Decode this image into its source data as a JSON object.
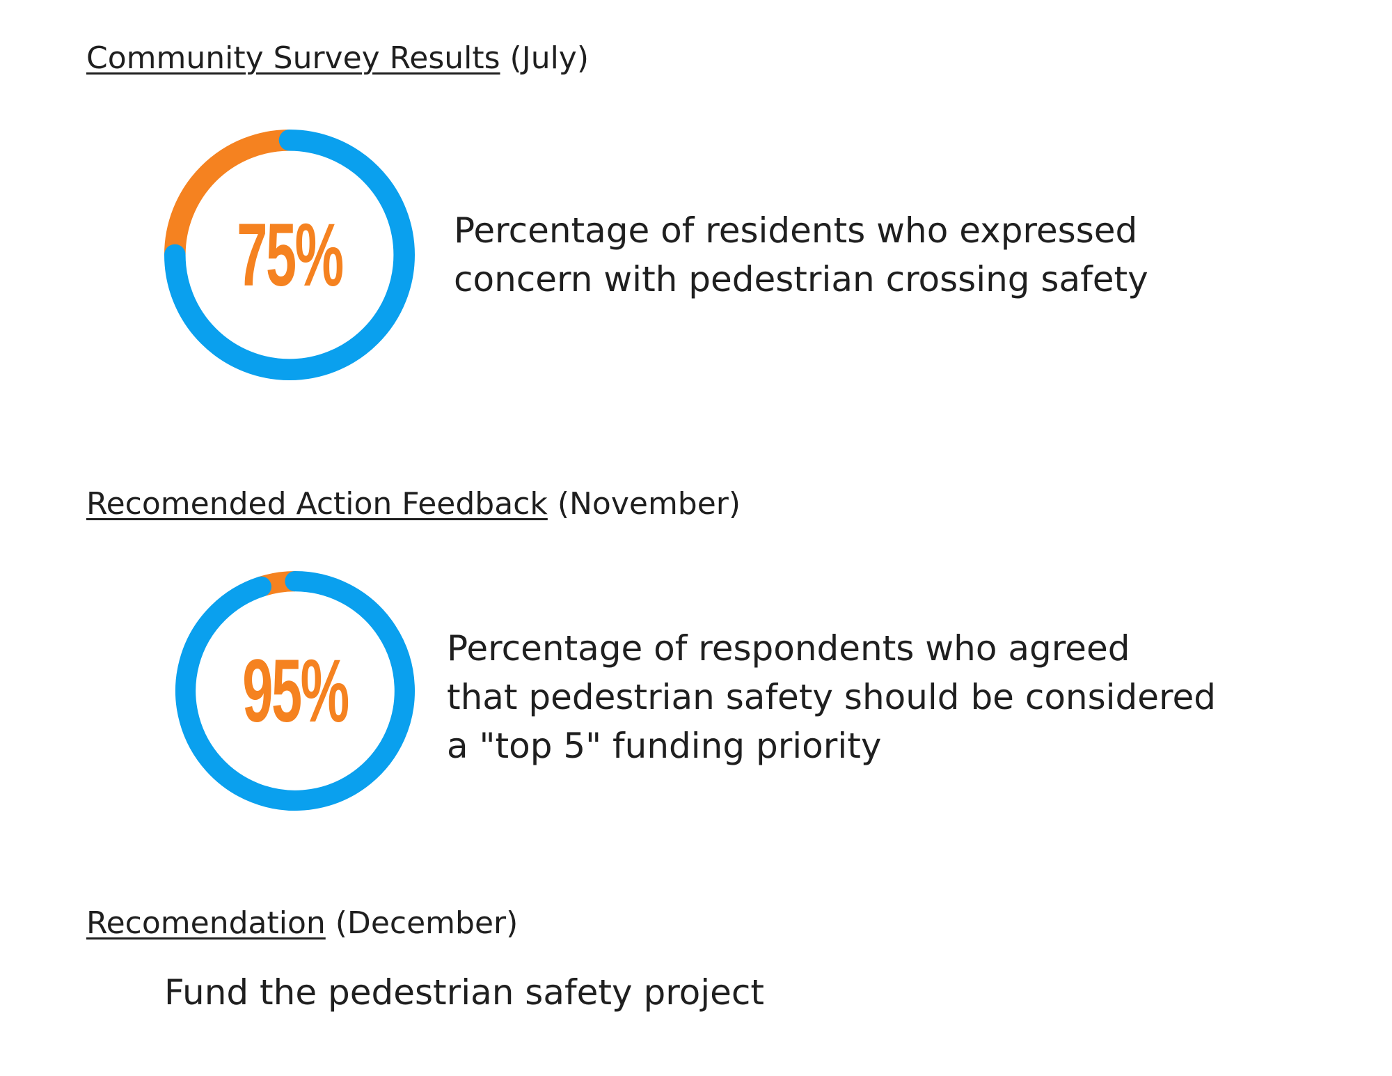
{
  "sections": [
    {
      "title": "Community Survey Results",
      "suffix": " (July)"
    },
    {
      "title": "Recomended Action Feedback",
      "suffix": " (November)"
    },
    {
      "title": "Recomendation",
      "suffix": " (December)"
    }
  ],
  "colors": {
    "primary": "#0aa0ee",
    "accent": "#f58220",
    "text": "#1f1f1f"
  },
  "chart_data": [
    {
      "type": "pie",
      "variant": "donut",
      "center_label": "75%",
      "slices": [
        {
          "value": 75,
          "color": "#0aa0ee"
        },
        {
          "value": 25,
          "color": "#f58220"
        }
      ],
      "description_lines": [
        "Percentage of residents who expressed",
        "concern with pedestrian crossing safety"
      ]
    },
    {
      "type": "pie",
      "variant": "donut",
      "center_label": "95%",
      "slices": [
        {
          "value": 95,
          "color": "#0aa0ee"
        },
        {
          "value": 5,
          "color": "#f58220"
        }
      ],
      "description_lines": [
        "Percentage of respondents who agreed",
        "that pedestrian safety should be considered",
        "a \"top 5\" funding priority"
      ]
    }
  ],
  "recommendation": "Fund the pedestrian safety project"
}
